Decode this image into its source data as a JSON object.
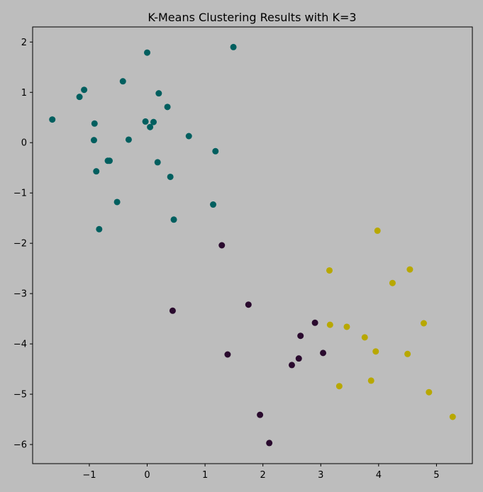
{
  "chart_data": {
    "type": "scatter",
    "title": "K-Means Clustering Results with K=3",
    "xlabel": "",
    "ylabel": "",
    "xlim": [
      -1.98,
      5.62
    ],
    "ylim": [
      -6.38,
      2.3
    ],
    "x_ticks": [
      -1,
      0,
      1,
      2,
      3,
      4,
      5
    ],
    "y_ticks": [
      2,
      1,
      0,
      -1,
      -2,
      -3,
      -4,
      -5,
      -6
    ],
    "x_tick_labels": [
      "−1",
      "0",
      "1",
      "2",
      "3",
      "4",
      "5"
    ],
    "y_tick_labels": [
      "2",
      "1",
      "0",
      "−1",
      "−2",
      "−3",
      "−4",
      "−5",
      "−6"
    ],
    "grid": false,
    "legend": "none",
    "background_color": "#bdbdbd",
    "series": [
      {
        "color": "#005f5f",
        "points": [
          [
            -1.64,
            0.46
          ],
          [
            -1.17,
            0.91
          ],
          [
            -1.09,
            1.05
          ],
          [
            -0.91,
            0.38
          ],
          [
            -0.92,
            0.05
          ],
          [
            -0.88,
            -0.57
          ],
          [
            -0.83,
            -1.72
          ],
          [
            -0.68,
            -0.36
          ],
          [
            -0.65,
            -0.36
          ],
          [
            -0.52,
            -1.18
          ],
          [
            -0.42,
            1.22
          ],
          [
            -0.32,
            0.06
          ],
          [
            -0.03,
            0.42
          ],
          [
            0.0,
            1.79
          ],
          [
            0.05,
            0.31
          ],
          [
            0.11,
            0.41
          ],
          [
            0.18,
            -0.39
          ],
          [
            0.2,
            0.98
          ],
          [
            0.35,
            0.71
          ],
          [
            0.4,
            -0.68
          ],
          [
            0.46,
            -1.53
          ],
          [
            0.72,
            0.13
          ],
          [
            1.14,
            -1.23
          ],
          [
            1.18,
            -0.17
          ],
          [
            1.49,
            1.9
          ]
        ]
      },
      {
        "color": "#2a0a2e",
        "points": [
          [
            0.44,
            -3.34
          ],
          [
            1.29,
            -2.04
          ],
          [
            1.39,
            -4.21
          ],
          [
            1.75,
            -3.22
          ],
          [
            1.95,
            -5.41
          ],
          [
            2.11,
            -5.97
          ],
          [
            2.5,
            -4.42
          ],
          [
            2.62,
            -4.29
          ],
          [
            2.65,
            -3.84
          ],
          [
            2.9,
            -3.58
          ],
          [
            3.04,
            -4.18
          ]
        ]
      },
      {
        "color": "#b8a800",
        "points": [
          [
            3.15,
            -2.54
          ],
          [
            3.16,
            -3.62
          ],
          [
            3.32,
            -4.84
          ],
          [
            3.45,
            -3.66
          ],
          [
            3.76,
            -3.87
          ],
          [
            3.87,
            -4.73
          ],
          [
            3.95,
            -4.15
          ],
          [
            3.98,
            -1.75
          ],
          [
            4.24,
            -2.79
          ],
          [
            4.5,
            -4.2
          ],
          [
            4.54,
            -2.52
          ],
          [
            4.78,
            -3.59
          ],
          [
            4.87,
            -4.96
          ],
          [
            5.28,
            -5.45
          ]
        ]
      }
    ]
  }
}
